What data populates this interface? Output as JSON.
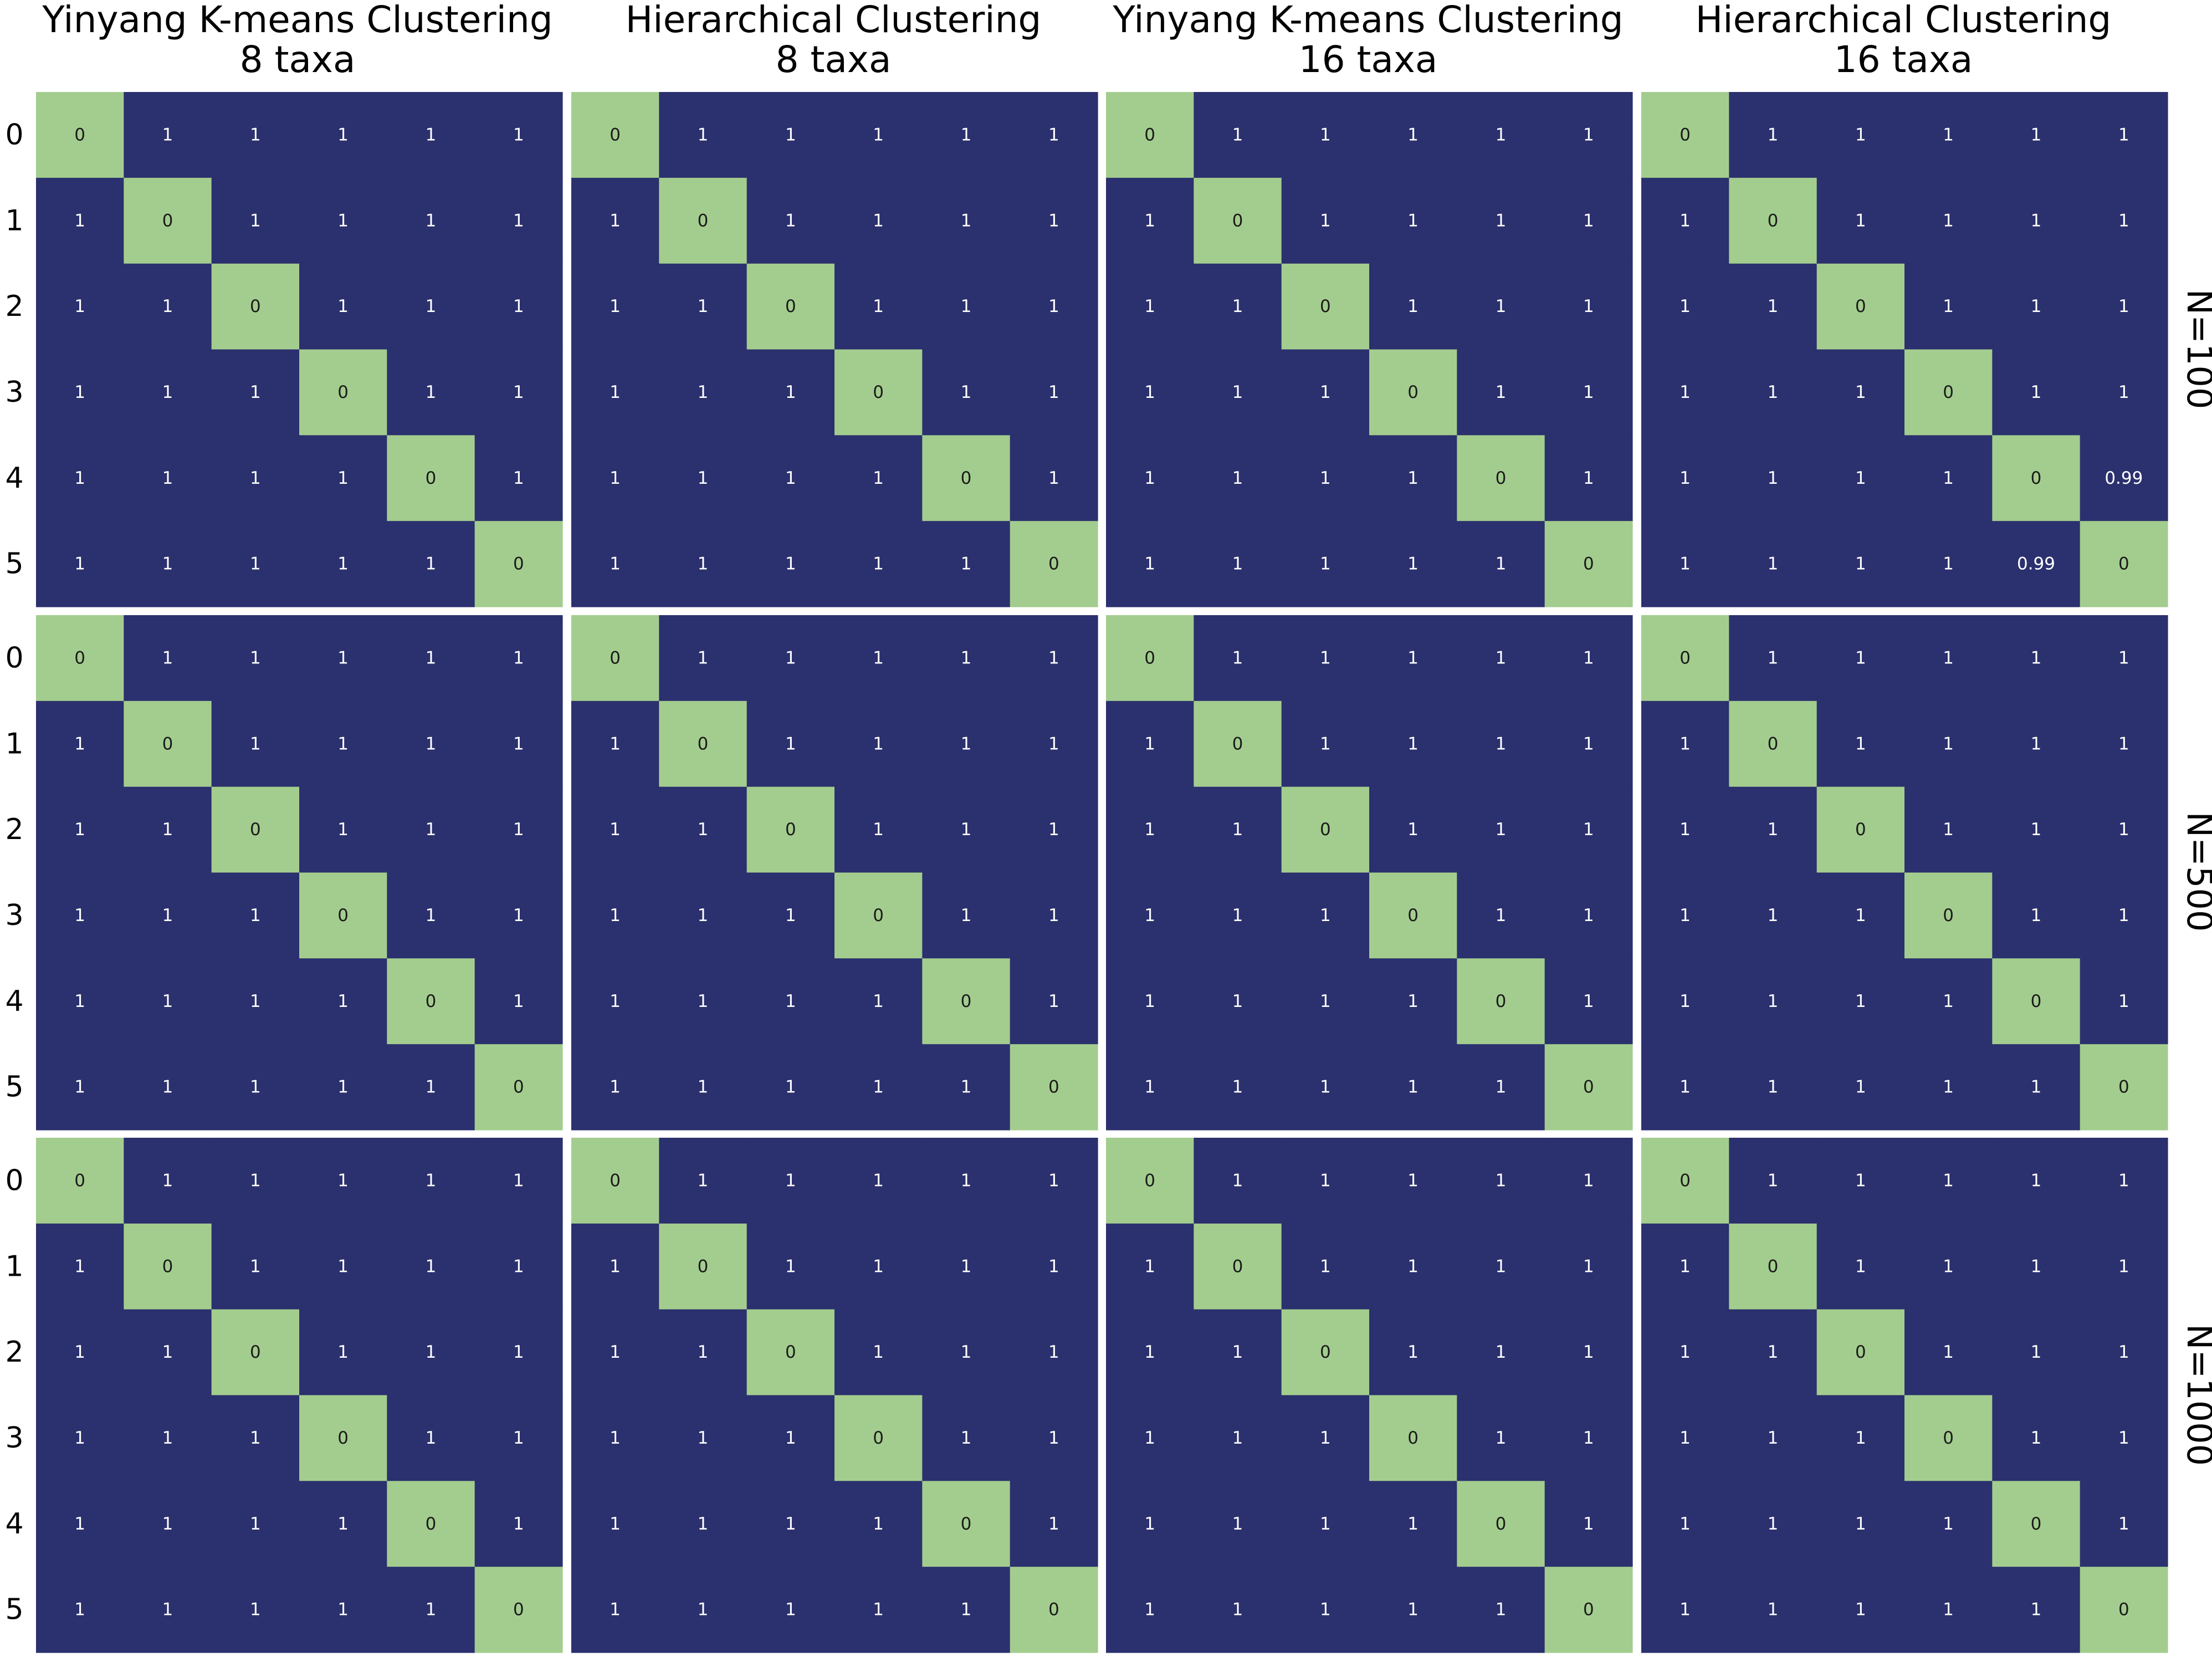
{
  "colors": {
    "off_diagonal": "#2b306e",
    "diagonal": "#a3cd8e",
    "text_on_dark": "#ffffff",
    "text_on_light": "#1a1a1a",
    "background": "#ffffff"
  },
  "columns": [
    {
      "title_line1": "Yinyang K-means Clustering",
      "title_line2": "8 taxa"
    },
    {
      "title_line1": "Hierarchical Clustering",
      "title_line2": "8 taxa"
    },
    {
      "title_line1": "Yinyang K-means Clustering",
      "title_line2": "16 taxa"
    },
    {
      "title_line1": "Hierarchical Clustering",
      "title_line2": "16 taxa"
    }
  ],
  "rows": [
    {
      "label": "N=100"
    },
    {
      "label": "N=500"
    },
    {
      "label": "N=1000"
    }
  ],
  "y_ticks": [
    "0",
    "1",
    "2",
    "3",
    "4",
    "5"
  ],
  "chart_data": {
    "type": "heatmap",
    "layout": "3 rows x 4 columns of 6x6 matrices",
    "grid": false,
    "cell_labels_shown": true,
    "matrices": [
      [
        [
          [
            0,
            1,
            1,
            1,
            1,
            1
          ],
          [
            1,
            0,
            1,
            1,
            1,
            1
          ],
          [
            1,
            1,
            0,
            1,
            1,
            1
          ],
          [
            1,
            1,
            1,
            0,
            1,
            1
          ],
          [
            1,
            1,
            1,
            1,
            0,
            1
          ],
          [
            1,
            1,
            1,
            1,
            1,
            0
          ]
        ],
        [
          [
            0,
            1,
            1,
            1,
            1,
            1
          ],
          [
            1,
            0,
            1,
            1,
            1,
            1
          ],
          [
            1,
            1,
            0,
            1,
            1,
            1
          ],
          [
            1,
            1,
            1,
            0,
            1,
            1
          ],
          [
            1,
            1,
            1,
            1,
            0,
            1
          ],
          [
            1,
            1,
            1,
            1,
            1,
            0
          ]
        ],
        [
          [
            0,
            1,
            1,
            1,
            1,
            1
          ],
          [
            1,
            0,
            1,
            1,
            1,
            1
          ],
          [
            1,
            1,
            0,
            1,
            1,
            1
          ],
          [
            1,
            1,
            1,
            0,
            1,
            1
          ],
          [
            1,
            1,
            1,
            1,
            0,
            1
          ],
          [
            1,
            1,
            1,
            1,
            1,
            0
          ]
        ],
        [
          [
            0,
            1,
            1,
            1,
            1,
            1
          ],
          [
            1,
            0,
            1,
            1,
            1,
            1
          ],
          [
            1,
            1,
            0,
            1,
            1,
            1
          ],
          [
            1,
            1,
            1,
            0,
            1,
            1
          ],
          [
            1,
            1,
            1,
            1,
            0,
            0.99
          ],
          [
            1,
            1,
            1,
            1,
            0.99,
            0
          ]
        ]
      ],
      [
        [
          [
            0,
            1,
            1,
            1,
            1,
            1
          ],
          [
            1,
            0,
            1,
            1,
            1,
            1
          ],
          [
            1,
            1,
            0,
            1,
            1,
            1
          ],
          [
            1,
            1,
            1,
            0,
            1,
            1
          ],
          [
            1,
            1,
            1,
            1,
            0,
            1
          ],
          [
            1,
            1,
            1,
            1,
            1,
            0
          ]
        ],
        [
          [
            0,
            1,
            1,
            1,
            1,
            1
          ],
          [
            1,
            0,
            1,
            1,
            1,
            1
          ],
          [
            1,
            1,
            0,
            1,
            1,
            1
          ],
          [
            1,
            1,
            1,
            0,
            1,
            1
          ],
          [
            1,
            1,
            1,
            1,
            0,
            1
          ],
          [
            1,
            1,
            1,
            1,
            1,
            0
          ]
        ],
        [
          [
            0,
            1,
            1,
            1,
            1,
            1
          ],
          [
            1,
            0,
            1,
            1,
            1,
            1
          ],
          [
            1,
            1,
            0,
            1,
            1,
            1
          ],
          [
            1,
            1,
            1,
            0,
            1,
            1
          ],
          [
            1,
            1,
            1,
            1,
            0,
            1
          ],
          [
            1,
            1,
            1,
            1,
            1,
            0
          ]
        ],
        [
          [
            0,
            1,
            1,
            1,
            1,
            1
          ],
          [
            1,
            0,
            1,
            1,
            1,
            1
          ],
          [
            1,
            1,
            0,
            1,
            1,
            1
          ],
          [
            1,
            1,
            1,
            0,
            1,
            1
          ],
          [
            1,
            1,
            1,
            1,
            0,
            1
          ],
          [
            1,
            1,
            1,
            1,
            1,
            0
          ]
        ]
      ],
      [
        [
          [
            0,
            1,
            1,
            1,
            1,
            1
          ],
          [
            1,
            0,
            1,
            1,
            1,
            1
          ],
          [
            1,
            1,
            0,
            1,
            1,
            1
          ],
          [
            1,
            1,
            1,
            0,
            1,
            1
          ],
          [
            1,
            1,
            1,
            1,
            0,
            1
          ],
          [
            1,
            1,
            1,
            1,
            1,
            0
          ]
        ],
        [
          [
            0,
            1,
            1,
            1,
            1,
            1
          ],
          [
            1,
            0,
            1,
            1,
            1,
            1
          ],
          [
            1,
            1,
            0,
            1,
            1,
            1
          ],
          [
            1,
            1,
            1,
            0,
            1,
            1
          ],
          [
            1,
            1,
            1,
            1,
            0,
            1
          ],
          [
            1,
            1,
            1,
            1,
            1,
            0
          ]
        ],
        [
          [
            0,
            1,
            1,
            1,
            1,
            1
          ],
          [
            1,
            0,
            1,
            1,
            1,
            1
          ],
          [
            1,
            1,
            0,
            1,
            1,
            1
          ],
          [
            1,
            1,
            1,
            0,
            1,
            1
          ],
          [
            1,
            1,
            1,
            1,
            0,
            1
          ],
          [
            1,
            1,
            1,
            1,
            1,
            0
          ]
        ],
        [
          [
            0,
            1,
            1,
            1,
            1,
            1
          ],
          [
            1,
            0,
            1,
            1,
            1,
            1
          ],
          [
            1,
            1,
            0,
            1,
            1,
            1
          ],
          [
            1,
            1,
            1,
            0,
            1,
            1
          ],
          [
            1,
            1,
            1,
            1,
            0,
            1
          ],
          [
            1,
            1,
            1,
            1,
            1,
            0
          ]
        ]
      ]
    ]
  }
}
